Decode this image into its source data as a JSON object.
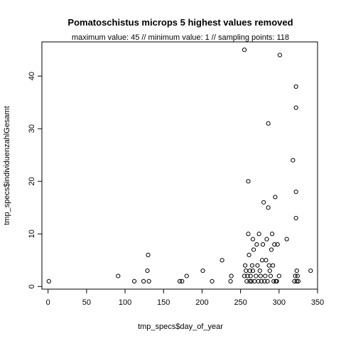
{
  "chart_data": {
    "type": "scatter",
    "title": "Pomatoschistus microps  5 highest values removed",
    "subtitle": "maximum value: 45  //  minimum value: 1  // sampling points: 118",
    "xlabel": "tmp_specs$day_of_year",
    "ylabel": "tmp_specs$individuenzahlGesamt",
    "xlim": [
      -8,
      350
    ],
    "ylim": [
      -0.5,
      46.5
    ],
    "xticks": [
      0,
      50,
      100,
      150,
      200,
      250,
      300,
      350
    ],
    "yticks": [
      0,
      10,
      20,
      30,
      40
    ],
    "grid": false,
    "legend": "none",
    "marker": "open-circle",
    "points": [
      [
        1,
        1
      ],
      [
        91,
        2
      ],
      [
        112,
        1
      ],
      [
        124,
        1
      ],
      [
        129,
        3
      ],
      [
        130,
        6
      ],
      [
        131,
        1
      ],
      [
        171,
        1
      ],
      [
        174,
        1
      ],
      [
        180,
        2
      ],
      [
        201,
        3
      ],
      [
        213,
        1
      ],
      [
        226,
        5
      ],
      [
        237,
        1
      ],
      [
        238,
        2
      ],
      [
        255,
        45
      ],
      [
        255,
        2
      ],
      [
        256,
        4
      ],
      [
        257,
        3
      ],
      [
        258,
        1
      ],
      [
        259,
        2
      ],
      [
        260,
        10
      ],
      [
        260,
        20
      ],
      [
        261,
        6
      ],
      [
        262,
        1
      ],
      [
        262,
        3
      ],
      [
        263,
        2
      ],
      [
        264,
        1
      ],
      [
        265,
        4
      ],
      [
        266,
        9
      ],
      [
        266,
        3
      ],
      [
        267,
        7
      ],
      [
        268,
        1
      ],
      [
        270,
        2
      ],
      [
        271,
        8
      ],
      [
        272,
        4
      ],
      [
        273,
        1
      ],
      [
        274,
        10
      ],
      [
        275,
        3
      ],
      [
        276,
        2
      ],
      [
        277,
        1
      ],
      [
        278,
        5
      ],
      [
        279,
        8
      ],
      [
        280,
        16
      ],
      [
        281,
        1
      ],
      [
        282,
        2
      ],
      [
        283,
        5
      ],
      [
        284,
        9
      ],
      [
        285,
        1
      ],
      [
        286,
        15
      ],
      [
        286,
        31
      ],
      [
        287,
        4
      ],
      [
        288,
        3
      ],
      [
        289,
        2
      ],
      [
        290,
        7
      ],
      [
        291,
        10
      ],
      [
        292,
        4
      ],
      [
        293,
        1
      ],
      [
        294,
        8
      ],
      [
        295,
        17
      ],
      [
        296,
        1
      ],
      [
        297,
        1
      ],
      [
        298,
        8
      ],
      [
        300,
        2
      ],
      [
        301,
        44
      ],
      [
        310,
        9
      ],
      [
        318,
        24
      ],
      [
        320,
        1
      ],
      [
        321,
        2
      ],
      [
        322,
        38
      ],
      [
        322,
        34
      ],
      [
        322,
        18
      ],
      [
        322,
        13
      ],
      [
        323,
        3
      ],
      [
        323,
        1
      ],
      [
        324,
        2
      ],
      [
        325,
        1
      ],
      [
        341,
        3
      ]
    ]
  }
}
